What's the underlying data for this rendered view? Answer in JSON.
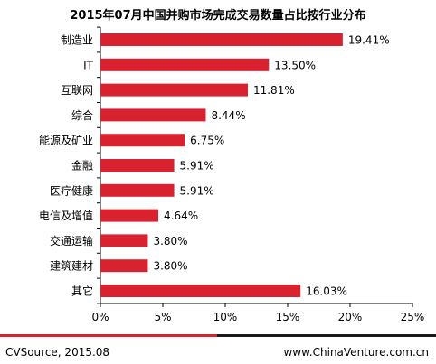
{
  "title": "2015年07月中国并购市场完成交易数量占比按行业分布",
  "footer": {
    "source": "CVSource, 2015.08",
    "site": "www.ChinaVenture.com.cn"
  },
  "colors": {
    "bar": "#d9222f",
    "footer_red": "#d9222f",
    "footer_black": "#1a1a1a"
  },
  "chart_data": {
    "type": "bar",
    "orientation": "horizontal",
    "categories": [
      "制造业",
      "IT",
      "互联网",
      "综合",
      "能源及矿业",
      "金融",
      "医疗健康",
      "电信及增值",
      "交通运输",
      "建筑建材",
      "其它"
    ],
    "values": [
      19.41,
      13.5,
      11.81,
      8.44,
      6.75,
      5.91,
      5.91,
      4.64,
      3.8,
      3.8,
      16.03
    ],
    "data_labels": [
      "19.41%",
      "13.50%",
      "11.81%",
      "8.44%",
      "6.75%",
      "5.91%",
      "5.91%",
      "4.64%",
      "3.80%",
      "3.80%",
      "16.03%"
    ],
    "xlim": [
      0,
      25
    ],
    "xticks": [
      0,
      5,
      10,
      15,
      20,
      25
    ],
    "xtick_labels": [
      "0%",
      "5%",
      "10%",
      "15%",
      "20%",
      "25%"
    ],
    "grid": false,
    "legend": "none"
  }
}
